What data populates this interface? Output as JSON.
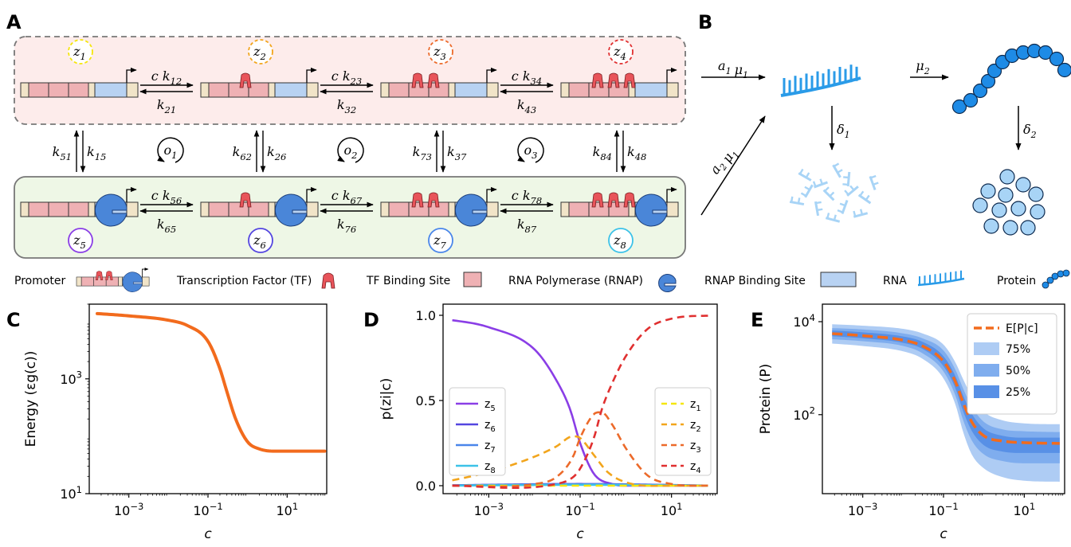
{
  "panels": {
    "a": "A",
    "b": "B",
    "c": "C",
    "d": "D",
    "e": "E"
  },
  "states": [
    {
      "label": "z1",
      "sub": "1",
      "color": "#f5e60a"
    },
    {
      "label": "z2",
      "sub": "2",
      "color": "#f2a51c"
    },
    {
      "label": "z3",
      "sub": "3",
      "color": "#ec6a2a"
    },
    {
      "label": "z4",
      "sub": "4",
      "color": "#e03030"
    },
    {
      "label": "z5",
      "sub": "5",
      "color": "#8a3ee6"
    },
    {
      "label": "z6",
      "sub": "6",
      "color": "#5446e0"
    },
    {
      "label": "z7",
      "sub": "7",
      "color": "#4a86ea"
    },
    {
      "label": "z8",
      "sub": "8",
      "color": "#3cc2e8"
    }
  ],
  "rates_top": [
    {
      "fwd": "c k12",
      "bwd": "k21",
      "f": "12",
      "b": "21"
    },
    {
      "fwd": "c k23",
      "bwd": "k32",
      "f": "23",
      "b": "32"
    },
    {
      "fwd": "c k34",
      "bwd": "k43",
      "f": "34",
      "b": "43"
    }
  ],
  "rates_bottom": [
    {
      "fwd": "c k56",
      "bwd": "k65",
      "f": "56",
      "b": "65"
    },
    {
      "fwd": "c k67",
      "bwd": "k76",
      "f": "67",
      "b": "76"
    },
    {
      "fwd": "c k78",
      "bwd": "k87",
      "f": "78",
      "b": "87"
    }
  ],
  "rates_vertical": [
    {
      "left": "k51",
      "right": "k15",
      "l": "51",
      "r": "15"
    },
    {
      "left": "k62",
      "right": "k26",
      "l": "62",
      "r": "26"
    },
    {
      "left": "k73",
      "right": "k37",
      "l": "73",
      "r": "37"
    },
    {
      "left": "k84",
      "right": "k48",
      "l": "84",
      "r": "48"
    }
  ],
  "cycles": [
    {
      "sub": "1"
    },
    {
      "sub": "2"
    },
    {
      "sub": "3"
    }
  ],
  "expression": {
    "a1mu1": "a1 μ1",
    "a2mu1": "a2 μ1",
    "mu2": "μ2",
    "delta1": "δ1",
    "delta2": "δ2"
  },
  "legend": {
    "promoter": "Promoter",
    "tf": "Transcription Factor (TF)",
    "tf_site": "TF Binding Site",
    "rnap": "RNA Polymerase (RNAP)",
    "rnap_site": "RNAP Binding Site",
    "rna": "RNA",
    "protein": "Protein"
  },
  "colors": {
    "tf": "#e8545a",
    "site": "#efb1b4",
    "rnap": "#4a86d8",
    "rnap_site": "#b8d2f2",
    "beige": "#f1e4c8",
    "rna": "#2a9be8",
    "rna_light": "#a8d4f6",
    "protein": "#1e8be6",
    "protein_light": "#a8d4f6",
    "orange": "#f26b1d"
  },
  "chart_data": [
    {
      "panel": "C",
      "type": "line",
      "xlabel": "c",
      "ylabel": "Energy (εg(c))",
      "xscale": "log",
      "yscale": "log",
      "xlim": [
        0.0001,
        100
      ],
      "ylim": [
        10,
        20000
      ],
      "xticks": [
        "10-3",
        "10-1",
        "101"
      ],
      "yticks": [
        "101",
        "103"
      ],
      "series": [
        {
          "color": "#f26b1d",
          "x": [
            0.0001,
            0.001,
            0.01,
            0.03,
            0.1,
            0.2,
            0.3,
            0.5,
            1,
            2,
            5,
            10,
            100
          ],
          "y": [
            14000,
            12500,
            10500,
            8500,
            4500,
            1500,
            600,
            200,
            80,
            60,
            55,
            55,
            55
          ]
        }
      ]
    },
    {
      "panel": "D",
      "type": "line",
      "xlabel": "c",
      "ylabel": "p(zi|c)",
      "xscale": "log",
      "xlim": [
        0.0001,
        100
      ],
      "ylim": [
        0,
        1
      ],
      "xticks": [
        "10-3",
        "10-1",
        "101"
      ],
      "yticks": [
        "0.0",
        "0.5",
        "1.0"
      ],
      "legend_left": [
        "z5",
        "z6",
        "z7",
        "z8"
      ],
      "legend_right": [
        "z1",
        "z2",
        "z3",
        "z4"
      ],
      "series": [
        {
          "name": "z5",
          "dash": false,
          "color": "#8a3ee6",
          "x": [
            0.0001,
            0.001,
            0.01,
            0.03,
            0.06,
            0.1,
            0.2,
            0.5,
            1,
            10,
            100
          ],
          "y": [
            0.98,
            0.93,
            0.8,
            0.62,
            0.45,
            0.25,
            0.07,
            0.01,
            0,
            0,
            0
          ]
        },
        {
          "name": "z6",
          "dash": false,
          "color": "#5446e0",
          "x": [
            0.0001,
            0.1,
            100
          ],
          "y": [
            0.002,
            0.01,
            0
          ]
        },
        {
          "name": "z7",
          "dash": false,
          "color": "#4a86ea",
          "x": [
            0.0001,
            0.1,
            100
          ],
          "y": [
            0.001,
            0.008,
            0
          ]
        },
        {
          "name": "z8",
          "dash": false,
          "color": "#3cc2e8",
          "x": [
            0.0001,
            0.1,
            100
          ],
          "y": [
            0,
            0.005,
            0
          ]
        },
        {
          "name": "z1",
          "dash": true,
          "color": "#f5e60a",
          "x": [
            0.0001,
            0.001,
            0.1,
            100
          ],
          "y": [
            0,
            0,
            0,
            0
          ]
        },
        {
          "name": "z2",
          "dash": true,
          "color": "#f2a51c",
          "x": [
            0.0001,
            0.001,
            0.01,
            0.03,
            0.07,
            0.1,
            0.2,
            0.4,
            1,
            10,
            100
          ],
          "y": [
            0.02,
            0.08,
            0.17,
            0.23,
            0.29,
            0.28,
            0.18,
            0.08,
            0.02,
            0,
            0
          ]
        },
        {
          "name": "z3",
          "dash": true,
          "color": "#ec6a2a",
          "x": [
            0.0001,
            0.01,
            0.03,
            0.07,
            0.1,
            0.2,
            0.3,
            0.5,
            1,
            3,
            10,
            100
          ],
          "y": [
            0,
            0.01,
            0.05,
            0.17,
            0.28,
            0.42,
            0.43,
            0.36,
            0.22,
            0.06,
            0.01,
            0
          ]
        },
        {
          "name": "z4",
          "dash": true,
          "color": "#e03030",
          "x": [
            0.0001,
            0.03,
            0.07,
            0.1,
            0.2,
            0.3,
            0.5,
            1,
            3,
            10,
            100
          ],
          "y": [
            0,
            0.01,
            0.05,
            0.1,
            0.28,
            0.45,
            0.6,
            0.76,
            0.92,
            0.98,
            1
          ]
        }
      ]
    },
    {
      "panel": "E",
      "type": "area",
      "xlabel": "c",
      "ylabel": "Protein (P)",
      "xscale": "log",
      "yscale": "log",
      "xlim": [
        0.0001,
        100
      ],
      "ylim": [
        2,
        10000
      ],
      "xticks": [
        "10-3",
        "10-1",
        "101"
      ],
      "yticks": [
        "102",
        "104"
      ],
      "legend": [
        "E[P|c]",
        "75%",
        "50%",
        "25%"
      ],
      "x": [
        0.0001,
        0.001,
        0.01,
        0.03,
        0.1,
        0.2,
        0.3,
        0.5,
        1,
        3,
        10,
        100
      ],
      "mean": [
        5700,
        5000,
        4000,
        3000,
        1400,
        500,
        190,
        70,
        35,
        27,
        25,
        24
      ],
      "bands": [
        {
          "name": "75%",
          "color": "#aeccf4",
          "lo": [
            3500,
            3000,
            2300,
            1600,
            600,
            160,
            45,
            14,
            7,
            4.5,
            3.8,
            3.6
          ],
          "hi": [
            9000,
            8200,
            7000,
            5600,
            3200,
            1300,
            600,
            250,
            115,
            75,
            65,
            62
          ]
        },
        {
          "name": "50%",
          "color": "#7fadee",
          "lo": [
            4300,
            3800,
            3000,
            2100,
            850,
            250,
            80,
            28,
            14,
            10,
            9,
            9
          ],
          "hi": [
            7400,
            6800,
            5600,
            4400,
            2400,
            900,
            380,
            150,
            70,
            48,
            44,
            42
          ]
        },
        {
          "name": "25%",
          "color": "#5890e6",
          "lo": [
            5000,
            4400,
            3500,
            2600,
            1100,
            360,
            125,
            45,
            22,
            16,
            15,
            15
          ],
          "hi": [
            6600,
            5900,
            4800,
            3700,
            1800,
            660,
            270,
            105,
            50,
            35,
            32,
            32
          ]
        }
      ]
    }
  ]
}
